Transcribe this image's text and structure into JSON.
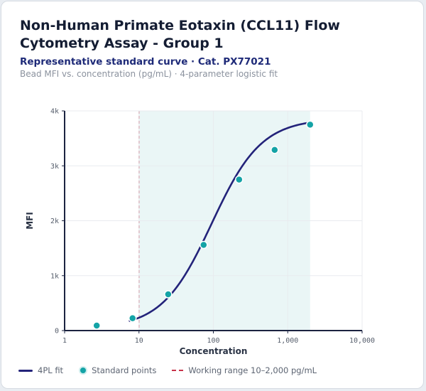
{
  "chart_data": {
    "type": "line",
    "title": "Non-Human Primate Eotaxin (CCL11) Flow Cytometry Assay - Group 1",
    "subtitle": "Representative standard curve · Cat. PX77021",
    "note": "Bead MFI vs. concentration (pg/mL) · 4-parameter logistic fit",
    "xlabel": "Concentration",
    "ylabel": "MFI",
    "x_scale": "log",
    "xlim": [
      1,
      10000
    ],
    "ylim": [
      0,
      4000
    ],
    "x_ticks": [
      1,
      10,
      100,
      1000,
      10000
    ],
    "x_tick_labels": [
      "1",
      "10",
      "100",
      "1,000",
      "10,000"
    ],
    "y_ticks": [
      0,
      1000,
      2000,
      3000,
      4000
    ],
    "y_tick_labels": [
      "0",
      "1k",
      "2k",
      "3k",
      "4k"
    ],
    "grid": true,
    "fit": {
      "bottom": 40,
      "top": 3860,
      "ec50": 95,
      "hill": 1.3,
      "x_from": 7.5,
      "x_to": 2000
    },
    "standard_points": [
      {
        "x": 2.7,
        "y": 90
      },
      {
        "x": 8.2,
        "y": 225
      },
      {
        "x": 24.7,
        "y": 660
      },
      {
        "x": 74,
        "y": 1560
      },
      {
        "x": 222,
        "y": 2750
      },
      {
        "x": 667,
        "y": 3290
      },
      {
        "x": 2000,
        "y": 3750
      }
    ],
    "working_range": [
      10,
      2000
    ],
    "legend": [
      {
        "label": "4PL fit",
        "kind": "line"
      },
      {
        "label": "Standard points",
        "kind": "dot"
      },
      {
        "label": "Working range 10–2,000 pg/mL",
        "kind": "dash"
      }
    ],
    "colors": {
      "fit": "#23237a",
      "points": "#14a3a6",
      "range_line": "#c8324a",
      "range_fill": "#eaf6f6"
    }
  }
}
